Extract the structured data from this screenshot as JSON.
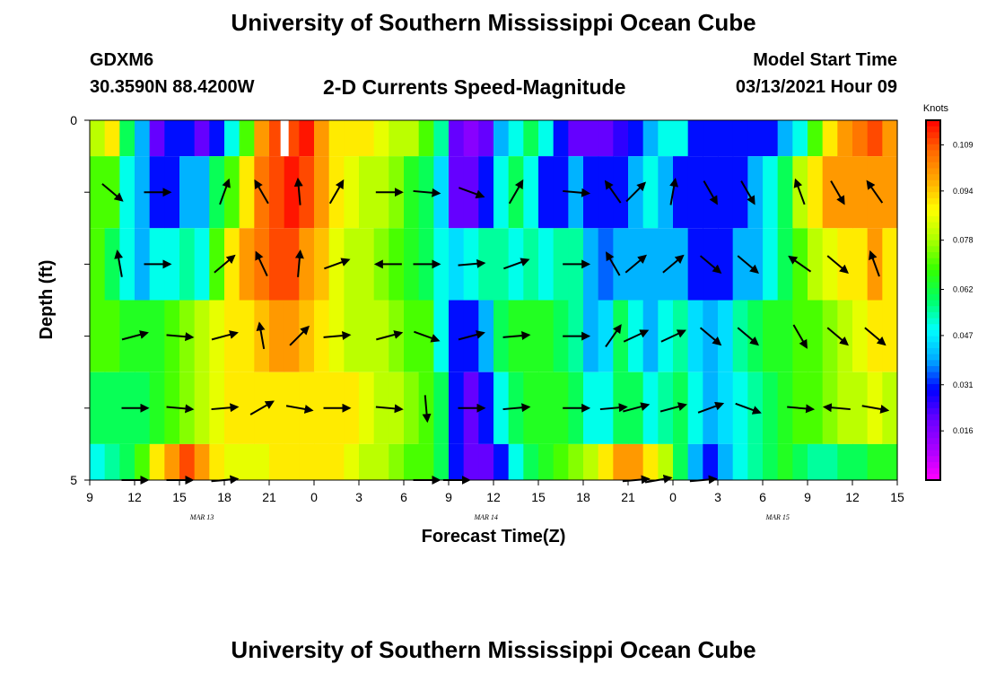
{
  "header": {
    "title": "University of Southern Mississippi Ocean Cube",
    "station": "GDXM6",
    "coordinates": "30.3590N 88.4200W",
    "subtitle": "2-D Currents Speed-Magnitude",
    "model_start_label": "Model Start Time",
    "model_start_value": "03/13/2021 Hour 09"
  },
  "footer": {
    "title": "University of Southern Mississippi Ocean Cube"
  },
  "chart_data": {
    "type": "heatmap",
    "title": "2-D Currents Speed-Magnitude",
    "xlabel": "Forecast Time(Z)",
    "ylabel": "Depth (ft)",
    "x_tick_labels": [
      "9",
      "12",
      "15",
      "18",
      "21",
      "0",
      "3",
      "6",
      "9",
      "12",
      "15",
      "18",
      "21",
      "0",
      "3",
      "6",
      "9",
      "12",
      "15"
    ],
    "x_hours_from_start": [
      0,
      54
    ],
    "date_labels": [
      {
        "text": "MAR 13",
        "hour": 7.5
      },
      {
        "text": "MAR 14",
        "hour": 26.5
      },
      {
        "text": "MAR 15",
        "hour": 46
      }
    ],
    "y_tick_labels": [
      "0",
      "5"
    ],
    "ylim": [
      0,
      5
    ],
    "colorbar": {
      "title": "Knots",
      "ticks": [
        "0.109",
        "0.094",
        "0.078",
        "0.062",
        "0.047",
        "0.031",
        "0.016"
      ],
      "range": [
        0.0,
        0.117
      ]
    },
    "speed_colors": [
      "#ff00ff",
      "#aa00ff",
      "#6a00ff",
      "#0000ff",
      "#00aaff",
      "#00ffff",
      "#00ff66",
      "#33ff00",
      "#aaff00",
      "#ffff00",
      "#ffaa00",
      "#ff6600",
      "#ff0000"
    ],
    "depth_bands": [
      {
        "depth": [
          0.0,
          0.5
        ],
        "speeds": [
          0.08,
          0.09,
          0.06,
          0.04,
          0.02,
          0.03,
          0.03,
          0.02,
          0.03,
          0.05,
          0.07,
          0.1,
          0.11,
          0.11,
          0.115,
          0.1,
          0.09,
          0.09,
          0.09,
          0.085,
          0.08,
          0.08,
          0.07,
          0.055,
          0.02,
          0.015,
          0.02,
          0.04,
          0.05,
          0.06,
          0.05,
          0.03,
          0.02,
          0.02,
          0.02,
          0.025,
          0.03,
          0.04,
          0.05,
          0.05,
          0.03,
          0.03,
          0.03,
          0.03,
          0.03,
          0.03,
          0.04,
          0.05,
          0.07,
          0.09,
          0.1,
          0.105,
          0.11,
          0.1
        ]
      },
      {
        "depth": [
          0.5,
          1.5
        ],
        "speeds": [
          0.07,
          0.07,
          0.05,
          0.04,
          0.03,
          0.03,
          0.04,
          0.04,
          0.06,
          0.07,
          0.09,
          0.105,
          0.11,
          0.115,
          0.11,
          0.1,
          0.09,
          0.085,
          0.08,
          0.08,
          0.075,
          0.065,
          0.06,
          0.045,
          0.02,
          0.02,
          0.03,
          0.05,
          0.06,
          0.05,
          0.03,
          0.03,
          0.04,
          0.03,
          0.03,
          0.03,
          0.04,
          0.05,
          0.04,
          0.03,
          0.03,
          0.03,
          0.03,
          0.03,
          0.04,
          0.05,
          0.06,
          0.08,
          0.09,
          0.1,
          0.1,
          0.1,
          0.1,
          0.1
        ]
      },
      {
        "depth": [
          1.5,
          2.5
        ],
        "speeds": [
          0.07,
          0.06,
          0.05,
          0.04,
          0.05,
          0.05,
          0.055,
          0.05,
          0.07,
          0.09,
          0.1,
          0.105,
          0.11,
          0.11,
          0.1,
          0.095,
          0.085,
          0.08,
          0.08,
          0.075,
          0.07,
          0.065,
          0.06,
          0.05,
          0.045,
          0.05,
          0.055,
          0.055,
          0.05,
          0.055,
          0.05,
          0.055,
          0.055,
          0.04,
          0.035,
          0.04,
          0.04,
          0.04,
          0.04,
          0.04,
          0.03,
          0.03,
          0.03,
          0.04,
          0.04,
          0.05,
          0.06,
          0.07,
          0.08,
          0.085,
          0.09,
          0.09,
          0.1,
          0.09
        ]
      },
      {
        "depth": [
          2.5,
          3.5
        ],
        "speeds": [
          0.07,
          0.07,
          0.065,
          0.065,
          0.065,
          0.07,
          0.075,
          0.08,
          0.085,
          0.09,
          0.09,
          0.095,
          0.1,
          0.1,
          0.095,
          0.09,
          0.085,
          0.08,
          0.08,
          0.08,
          0.075,
          0.07,
          0.07,
          0.05,
          0.03,
          0.03,
          0.04,
          0.06,
          0.065,
          0.065,
          0.065,
          0.06,
          0.055,
          0.04,
          0.045,
          0.06,
          0.05,
          0.04,
          0.05,
          0.055,
          0.045,
          0.04,
          0.045,
          0.055,
          0.06,
          0.065,
          0.065,
          0.07,
          0.07,
          0.075,
          0.08,
          0.085,
          0.09,
          0.09
        ]
      },
      {
        "depth": [
          3.5,
          4.5
        ],
        "speeds": [
          0.06,
          0.06,
          0.06,
          0.06,
          0.065,
          0.07,
          0.075,
          0.08,
          0.085,
          0.09,
          0.09,
          0.09,
          0.09,
          0.09,
          0.09,
          0.09,
          0.09,
          0.09,
          0.085,
          0.08,
          0.08,
          0.075,
          0.07,
          0.06,
          0.03,
          0.02,
          0.03,
          0.05,
          0.06,
          0.065,
          0.065,
          0.065,
          0.06,
          0.05,
          0.05,
          0.06,
          0.06,
          0.05,
          0.055,
          0.06,
          0.05,
          0.04,
          0.045,
          0.05,
          0.055,
          0.06,
          0.065,
          0.07,
          0.07,
          0.075,
          0.08,
          0.08,
          0.085,
          0.08
        ]
      },
      {
        "depth": [
          4.5,
          5.0
        ],
        "speeds": [
          0.05,
          0.055,
          0.06,
          0.07,
          0.09,
          0.1,
          0.11,
          0.1,
          0.09,
          0.085,
          0.085,
          0.085,
          0.09,
          0.09,
          0.09,
          0.09,
          0.09,
          0.085,
          0.08,
          0.08,
          0.075,
          0.07,
          0.07,
          0.06,
          0.03,
          0.02,
          0.02,
          0.03,
          0.05,
          0.06,
          0.065,
          0.07,
          0.075,
          0.08,
          0.09,
          0.1,
          0.1,
          0.09,
          0.08,
          0.06,
          0.04,
          0.03,
          0.04,
          0.05,
          0.055,
          0.06,
          0.065,
          0.06,
          0.055,
          0.055,
          0.06,
          0.06,
          0.065,
          0.065
        ]
      }
    ],
    "current_vectors": [
      {
        "depth": 1.0,
        "hours": [
          1.5,
          4.5,
          9,
          11.5,
          14,
          16.5,
          20,
          22.5,
          25.5,
          28.5,
          32.5,
          35,
          36.5,
          39,
          41.5,
          44,
          47.5,
          50,
          52.5
        ],
        "directions_deg": [
          -40,
          0,
          70,
          120,
          95,
          60,
          0,
          -5,
          -20,
          60,
          -5,
          125,
          45,
          80,
          -60,
          -60,
          110,
          -60,
          125
        ]
      },
      {
        "depth": 2.0,
        "hours": [
          2,
          4.5,
          9,
          11.5,
          14,
          16.5,
          20,
          22.5,
          25.5,
          28.5,
          32.5,
          35,
          36.5,
          39,
          41.5,
          44,
          47.5,
          50,
          52.5
        ],
        "directions_deg": [
          100,
          0,
          40,
          115,
          85,
          20,
          180,
          0,
          5,
          20,
          0,
          120,
          40,
          40,
          -40,
          -40,
          145,
          -40,
          110
        ]
      },
      {
        "depth": 3.0,
        "hours": [
          3,
          6,
          9,
          11.5,
          14,
          16.5,
          20,
          22.5,
          25.5,
          28.5,
          32.5,
          35,
          36.5,
          39,
          41.5,
          44,
          47.5,
          50,
          52.5
        ],
        "directions_deg": [
          15,
          -5,
          15,
          100,
          45,
          5,
          15,
          -20,
          15,
          5,
          0,
          55,
          25,
          25,
          -40,
          -40,
          -60,
          -40,
          -40
        ]
      },
      {
        "depth": 4.0,
        "hours": [
          3,
          6,
          9,
          11.5,
          14,
          16.5,
          20,
          22.5,
          25.5,
          28.5,
          32.5,
          35,
          36.5,
          39,
          41.5,
          44,
          47.5,
          50,
          52.5
        ],
        "directions_deg": [
          0,
          -5,
          5,
          30,
          -10,
          0,
          -5,
          -85,
          0,
          5,
          0,
          5,
          15,
          15,
          20,
          -20,
          -5,
          175,
          -10
        ]
      },
      {
        "depth": 5.0,
        "hours": [
          3,
          6,
          9,
          22.5,
          24.5,
          36.5,
          38,
          41
        ],
        "directions_deg": [
          0,
          0,
          5,
          0,
          0,
          5,
          10,
          5
        ]
      }
    ],
    "annotations": [
      {
        "text": "white marker",
        "hour": 13
      }
    ]
  }
}
